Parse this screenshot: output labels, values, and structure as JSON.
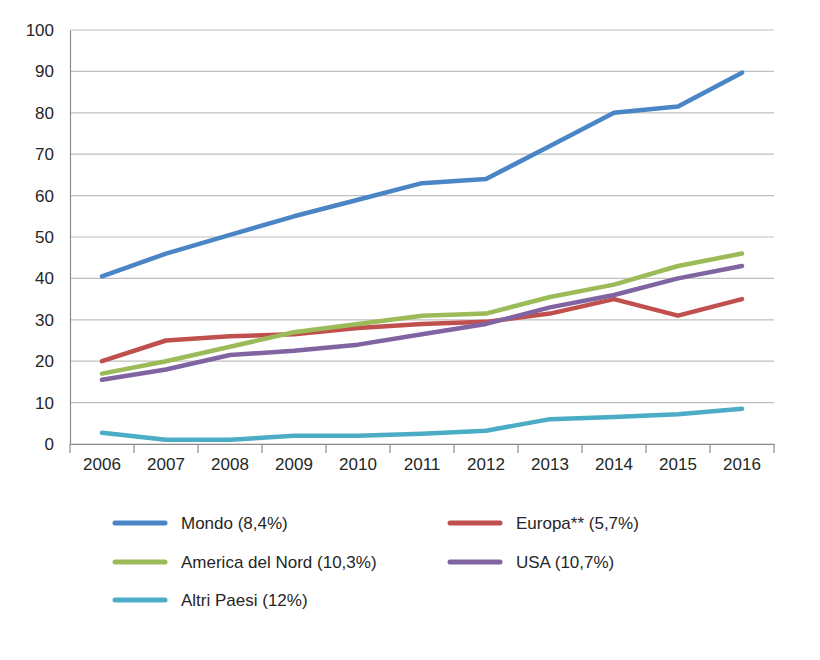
{
  "chart_data": {
    "type": "line",
    "categories": [
      "2006",
      "2007",
      "2008",
      "2009",
      "2010",
      "2011",
      "2012",
      "2013",
      "2014",
      "2015",
      "2016"
    ],
    "series": [
      {
        "name": "Mondo (8,4%)",
        "color": "#4a85c6",
        "values": [
          40.5,
          46,
          50.5,
          55,
          59,
          63,
          64,
          72,
          80,
          81.5,
          89.7
        ]
      },
      {
        "name": "Europa** (5,7%)",
        "color": "#c0504d",
        "values": [
          20,
          25,
          26,
          26.5,
          28,
          29,
          29.5,
          31.5,
          35,
          31,
          35
        ]
      },
      {
        "name": "America del Nord (10,3%)",
        "color": "#9bbb59",
        "values": [
          17,
          20,
          23.5,
          27,
          29,
          31,
          31.5,
          35.5,
          38.5,
          43,
          46
        ]
      },
      {
        "name": "USA (10,7%)",
        "color": "#8064a2",
        "values": [
          15.5,
          18,
          21.5,
          22.5,
          24,
          26.5,
          29,
          33,
          36,
          40,
          43
        ]
      },
      {
        "name": "Altri Paesi (12%)",
        "color": "#4bacc6",
        "values": [
          2.7,
          1,
          1,
          2,
          2,
          2.5,
          3.2,
          6,
          6.5,
          7.2,
          8.5
        ]
      }
    ],
    "ylim": [
      0,
      100
    ],
    "yticks": [
      0,
      10,
      20,
      30,
      40,
      50,
      60,
      70,
      80,
      90,
      100
    ],
    "grid": true,
    "legend": "bottom"
  }
}
